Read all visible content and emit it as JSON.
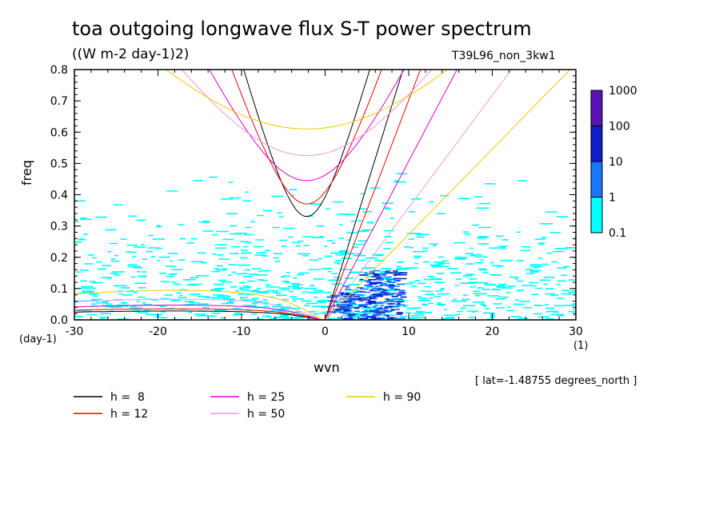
{
  "chart_data": {
    "type": "contour",
    "title": "toa outgoing longwave flux S-T power spectrum",
    "subtitle": "((W m-2 day-1)2)",
    "run_label": "T39L96_non_3kw1",
    "xlabel": "wvn",
    "ylabel": "freq",
    "x_unit": "(1)",
    "y_unit": "(day-1)",
    "xlim": [
      -30,
      30
    ],
    "ylim": [
      0,
      0.8
    ],
    "x_ticks": [
      "-30",
      "-20",
      "-10",
      "0",
      "10",
      "20",
      "30"
    ],
    "y_ticks": [
      "0.0",
      "0.1",
      "0.2",
      "0.3",
      "0.4",
      "0.5",
      "0.6",
      "0.7",
      "0.8"
    ],
    "colorbar": {
      "levels": [
        "0.1",
        "1",
        "10",
        "100",
        "1000"
      ],
      "colors": [
        "#00ffff",
        "#1a75ff",
        "#0d1fc6",
        "#5a12b8"
      ]
    },
    "note": "[ lat=-1.48755 degrees_north ]",
    "dispersion_curves": [
      {
        "name": "h =  8",
        "h": 8,
        "color": "#000000"
      },
      {
        "name": "h = 12",
        "h": 12,
        "color": "#ff0000"
      },
      {
        "name": "h = 25",
        "h": 25,
        "color": "#e000c8"
      },
      {
        "name": "h = 50",
        "h": 50,
        "color": "#e89ae0"
      },
      {
        "name": "h = 90",
        "h": 90,
        "color": "#f0c800"
      }
    ]
  }
}
